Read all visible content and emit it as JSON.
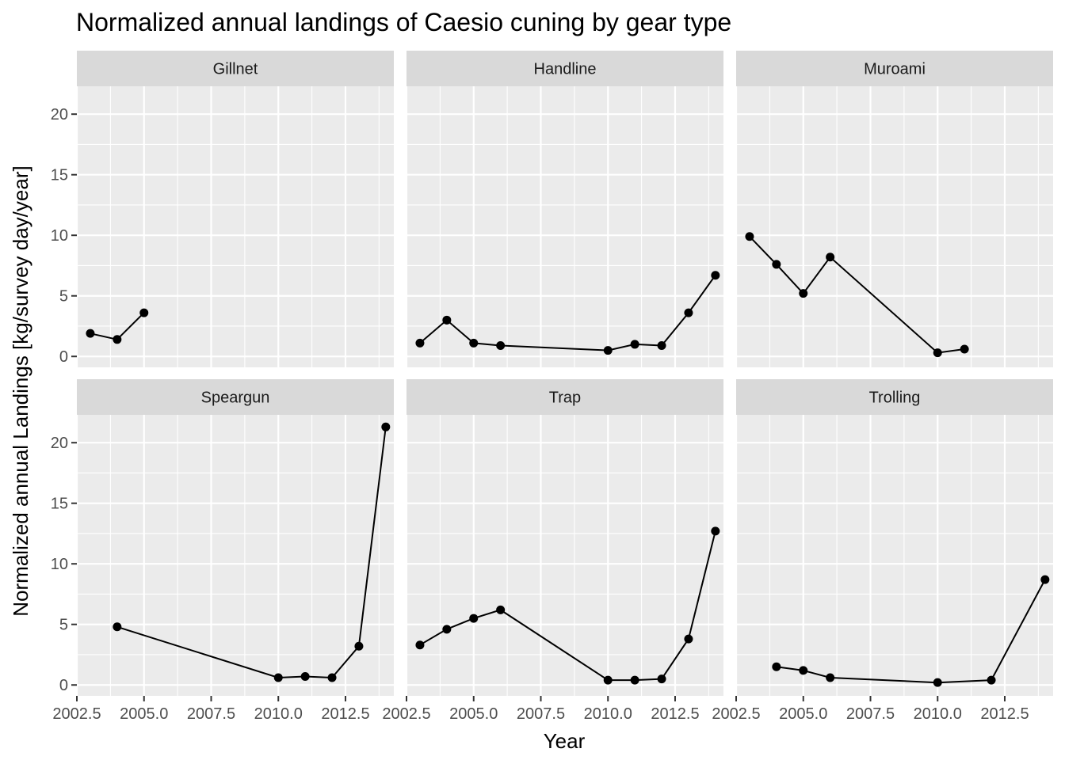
{
  "chart_data": {
    "type": "line",
    "title": "Normalized annual landings of Caesio cuning by gear type",
    "xlabel": "Year",
    "ylabel": "Normalized annual Landings [kg/survey day/year]",
    "xlim": [
      2002.5,
      2014.3
    ],
    "ylim": [
      -0.9,
      22.3
    ],
    "x_major_ticks": [
      2002.5,
      2005.0,
      2007.5,
      2010.0,
      2012.5
    ],
    "x_tick_labels": [
      "2002.5",
      "2005.0",
      "2007.5",
      "2010.0",
      "2012.5"
    ],
    "y_major_ticks": [
      0,
      5,
      10,
      15,
      20
    ],
    "y_tick_labels": [
      "0",
      "5",
      "10",
      "15",
      "20"
    ],
    "grid": true,
    "layout": "facet_wrap 2 rows x 3 columns",
    "facets": [
      {
        "label": "Gillnet",
        "x": [
          2003,
          2004,
          2005
        ],
        "y": [
          1.9,
          1.4,
          3.6
        ]
      },
      {
        "label": "Handline",
        "x": [
          2003,
          2004,
          2005,
          2006,
          2010,
          2011,
          2012,
          2013,
          2014
        ],
        "y": [
          1.1,
          3.0,
          1.1,
          0.9,
          0.5,
          1.0,
          0.9,
          3.6,
          6.7
        ]
      },
      {
        "label": "Muroami",
        "x": [
          2003,
          2004,
          2005,
          2006,
          2010,
          2011
        ],
        "y": [
          9.9,
          7.6,
          5.2,
          8.2,
          0.3,
          0.6
        ]
      },
      {
        "label": "Speargun",
        "x": [
          2004,
          2010,
          2011,
          2012,
          2013,
          2014
        ],
        "y": [
          4.8,
          0.6,
          0.7,
          0.6,
          3.2,
          21.3
        ]
      },
      {
        "label": "Trap",
        "x": [
          2003,
          2004,
          2005,
          2006,
          2010,
          2011,
          2012,
          2013,
          2014
        ],
        "y": [
          3.3,
          4.6,
          5.5,
          6.2,
          0.4,
          0.4,
          0.5,
          3.8,
          12.7
        ]
      },
      {
        "label": "Trolling",
        "x": [
          2004,
          2005,
          2006,
          2010,
          2012,
          2014
        ],
        "y": [
          1.5,
          1.2,
          0.6,
          0.2,
          0.4,
          8.7
        ]
      }
    ]
  }
}
